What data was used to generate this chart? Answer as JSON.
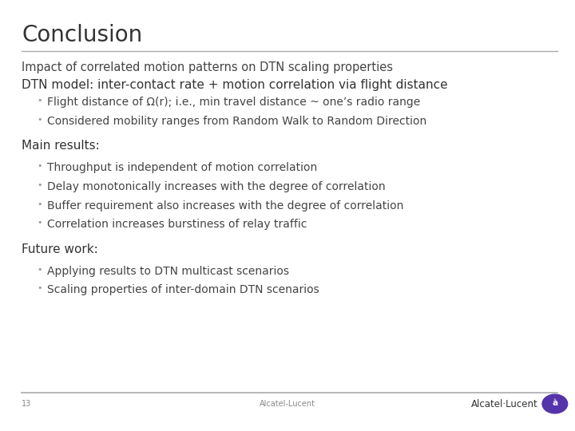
{
  "title": "Conclusion",
  "title_fontsize": 20,
  "title_color": "#333333",
  "bg_color": "#ffffff",
  "line_color": "#aaaaaa",
  "subtitle1": "Impact of correlated motion patterns on DTN scaling properties",
  "subtitle1_fontsize": 10.5,
  "subtitle1_color": "#444444",
  "section1_header": "DTN model: inter-contact rate + motion correlation via flight distance",
  "section1_header_fontsize": 11,
  "section1_header_color": "#333333",
  "section1_bullets": [
    "Flight distance of Ω(r); i.e., min travel distance ~ one’s radio range",
    "Considered mobility ranges from Random Walk to Random Direction"
  ],
  "section2_header": "Main results:",
  "section2_header_fontsize": 11,
  "section2_header_color": "#333333",
  "section2_bullets": [
    "Throughput is independent of motion correlation",
    "Delay monotonically increases with the degree of correlation",
    "Buffer requirement also increases with the degree of correlation",
    "Correlation increases burstiness of relay traffic"
  ],
  "section3_header": "Future work:",
  "section3_header_fontsize": 11,
  "section3_header_color": "#333333",
  "section3_bullets": [
    "Applying results to DTN multicast scenarios",
    "Scaling properties of inter-domain DTN scenarios"
  ],
  "bullet_fontsize": 10,
  "bullet_color": "#444444",
  "bullet_marker_color": "#999999",
  "footer_page": "13",
  "footer_center": "Alcatel-Lucent",
  "footer_fontsize": 7,
  "footer_color": "#888888",
  "logo_text": "Alcatel·Lucent",
  "logo_fontsize": 8.5,
  "logo_color": "#333333",
  "logo_circle_color": "#5533aa"
}
